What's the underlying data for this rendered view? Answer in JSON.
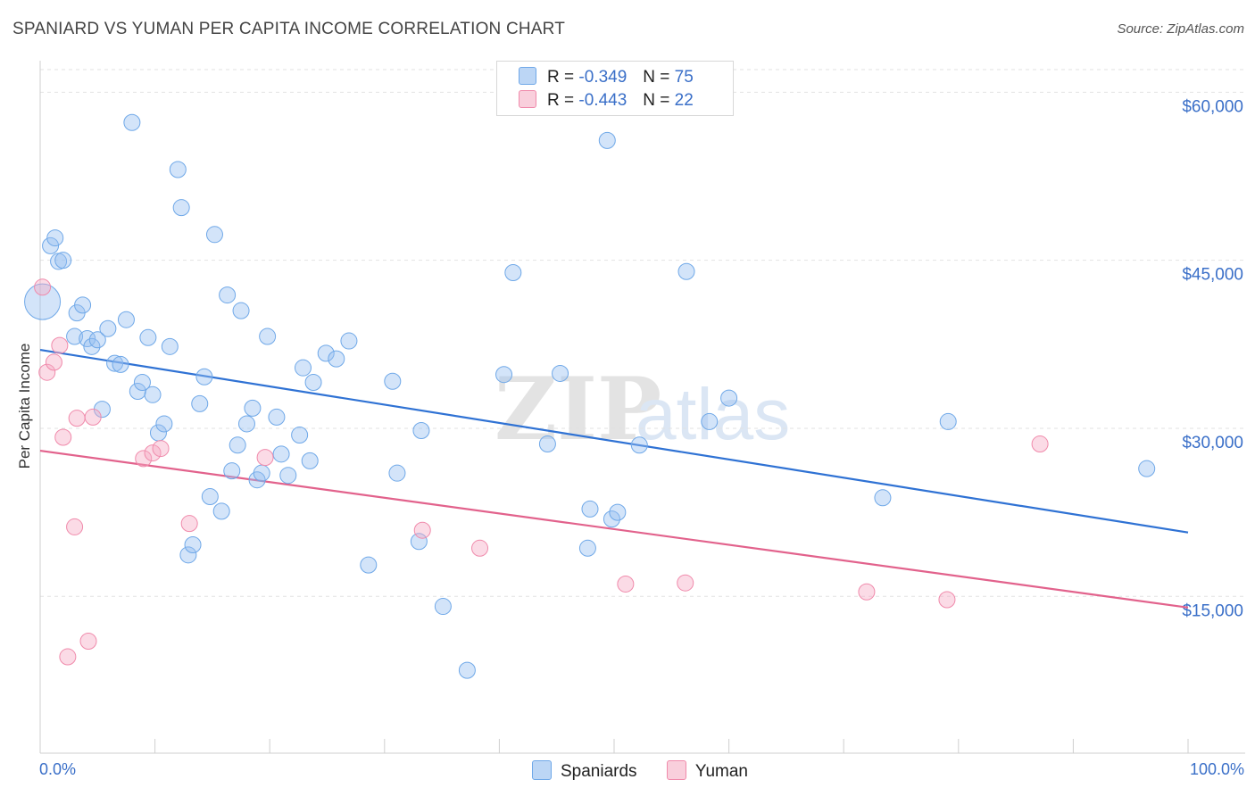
{
  "title": "SPANIARD VS YUMAN PER CAPITA INCOME CORRELATION CHART",
  "source": "Source: ZipAtlas.com",
  "watermark": "ZIPatlas",
  "legend_top": [
    {
      "r_label": "R =",
      "r_value": "-0.349",
      "n_label": "N =",
      "n_value": "75"
    },
    {
      "r_label": "R =",
      "r_value": "-0.443",
      "n_label": "N =",
      "n_value": "22"
    }
  ],
  "chart_data": {
    "type": "scatter",
    "title": "SPANIARD VS YUMAN PER CAPITA INCOME CORRELATION CHART",
    "xlabel": "",
    "ylabel": "Per Capita Income",
    "xlim": [
      0,
      100
    ],
    "ylim": [
      1000,
      62500
    ],
    "x_tick_labels": [
      "0.0%",
      "100.0%"
    ],
    "y_ticks": [
      15000,
      30000,
      45000,
      60000
    ],
    "y_tick_labels": [
      "$15,000",
      "$30,000",
      "$45,000",
      "$60,000"
    ],
    "grid": true,
    "legend_position": "bottom-center",
    "colors": {
      "Spaniards": "#6fa8e8",
      "Yuman": "#f08aab",
      "Spaniards_line": "#2f72d4",
      "Yuman_line": "#e2628c"
    },
    "series": [
      {
        "name": "Spaniards",
        "r": -0.349,
        "n": 75,
        "trend": {
          "x": [
            0,
            100
          ],
          "y": [
            37000,
            20700
          ]
        },
        "points": [
          [
            0.2,
            41300
          ],
          [
            0.9,
            46300
          ],
          [
            1.3,
            47000
          ],
          [
            1.6,
            44900
          ],
          [
            2.0,
            45000
          ],
          [
            3.0,
            38200
          ],
          [
            3.2,
            40300
          ],
          [
            3.7,
            41000
          ],
          [
            4.1,
            38000
          ],
          [
            4.5,
            37300
          ],
          [
            5.0,
            37900
          ],
          [
            5.4,
            31700
          ],
          [
            5.9,
            38900
          ],
          [
            6.5,
            35800
          ],
          [
            7.0,
            35700
          ],
          [
            7.5,
            39700
          ],
          [
            8.0,
            57300
          ],
          [
            8.5,
            33300
          ],
          [
            8.9,
            34100
          ],
          [
            9.4,
            38100
          ],
          [
            9.8,
            33000
          ],
          [
            10.3,
            29600
          ],
          [
            10.8,
            30400
          ],
          [
            11.3,
            37300
          ],
          [
            12.0,
            53100
          ],
          [
            12.3,
            49700
          ],
          [
            12.9,
            18700
          ],
          [
            13.3,
            19600
          ],
          [
            13.9,
            32200
          ],
          [
            14.3,
            34600
          ],
          [
            14.8,
            23900
          ],
          [
            15.2,
            47300
          ],
          [
            15.8,
            22600
          ],
          [
            16.3,
            41900
          ],
          [
            16.7,
            26200
          ],
          [
            17.2,
            28500
          ],
          [
            17.5,
            40500
          ],
          [
            18.0,
            30400
          ],
          [
            18.5,
            31800
          ],
          [
            18.9,
            25400
          ],
          [
            19.3,
            26000
          ],
          [
            19.8,
            38200
          ],
          [
            20.6,
            31000
          ],
          [
            21.0,
            27700
          ],
          [
            21.6,
            25800
          ],
          [
            22.6,
            29400
          ],
          [
            22.9,
            35400
          ],
          [
            23.5,
            27100
          ],
          [
            23.8,
            34100
          ],
          [
            24.9,
            36700
          ],
          [
            25.8,
            36200
          ],
          [
            26.9,
            37800
          ],
          [
            28.6,
            17800
          ],
          [
            30.7,
            34200
          ],
          [
            31.1,
            26000
          ],
          [
            33.0,
            19900
          ],
          [
            33.2,
            29800
          ],
          [
            35.1,
            14100
          ],
          [
            37.2,
            8400
          ],
          [
            40.4,
            34800
          ],
          [
            41.2,
            43900
          ],
          [
            44.2,
            28600
          ],
          [
            45.3,
            34900
          ],
          [
            47.7,
            19300
          ],
          [
            47.9,
            22800
          ],
          [
            49.4,
            55700
          ],
          [
            49.8,
            21900
          ],
          [
            50.3,
            22500
          ],
          [
            52.2,
            28500
          ],
          [
            56.3,
            44000
          ],
          [
            58.3,
            30600
          ],
          [
            60.0,
            32700
          ],
          [
            73.4,
            23800
          ],
          [
            79.1,
            30600
          ],
          [
            96.4,
            26400
          ]
        ]
      },
      {
        "name": "Yuman",
        "r": -0.443,
        "n": 22,
        "trend": {
          "x": [
            0,
            100
          ],
          "y": [
            28000,
            14000
          ]
        },
        "points": [
          [
            0.2,
            42600
          ],
          [
            0.6,
            35000
          ],
          [
            1.2,
            35900
          ],
          [
            1.7,
            37400
          ],
          [
            2.0,
            29200
          ],
          [
            2.4,
            9600
          ],
          [
            3.0,
            21200
          ],
          [
            3.2,
            30900
          ],
          [
            4.2,
            11000
          ],
          [
            4.6,
            31000
          ],
          [
            9.0,
            27300
          ],
          [
            9.8,
            27800
          ],
          [
            10.5,
            28200
          ],
          [
            13.0,
            21500
          ],
          [
            19.6,
            27400
          ],
          [
            33.3,
            20900
          ],
          [
            38.3,
            19300
          ],
          [
            51.0,
            16100
          ],
          [
            56.2,
            16200
          ],
          [
            72.0,
            15400
          ],
          [
            79.0,
            14700
          ],
          [
            87.1,
            28600
          ]
        ]
      }
    ]
  }
}
